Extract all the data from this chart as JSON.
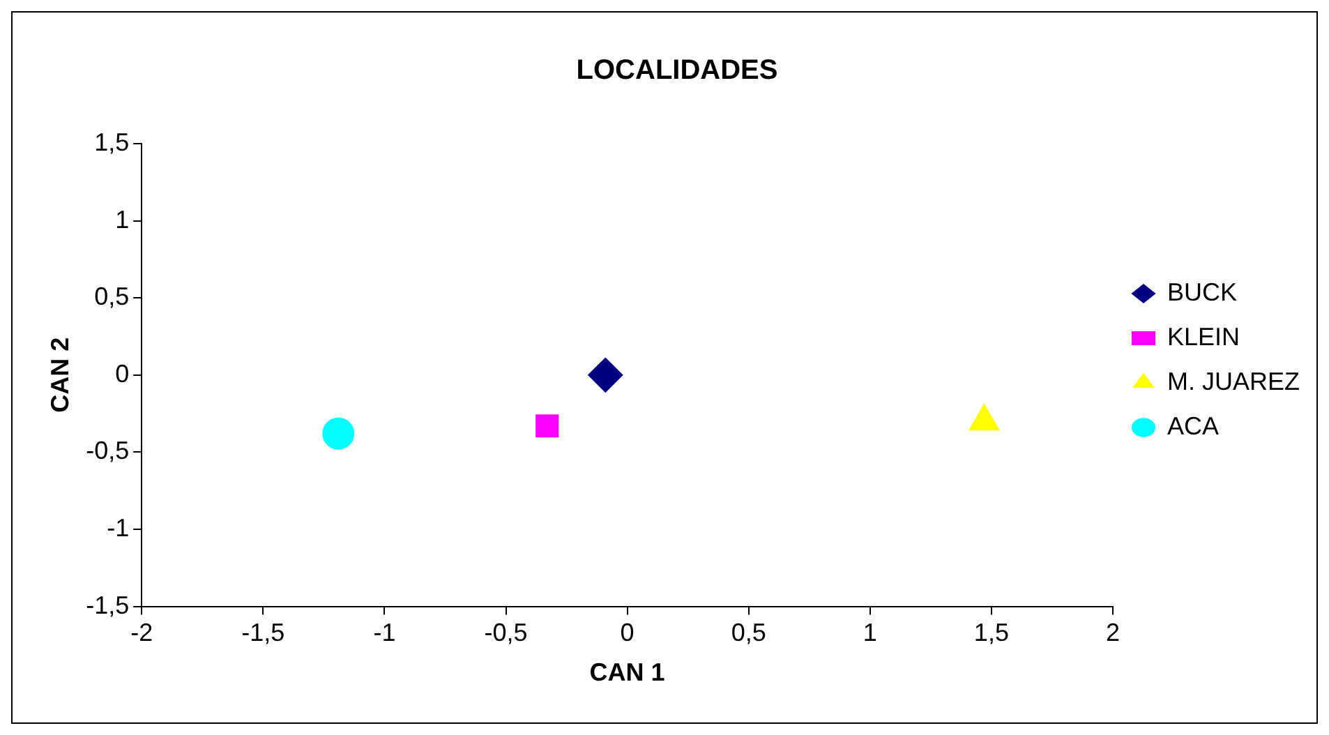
{
  "chart_data": {
    "type": "scatter",
    "title": "LOCALIDADES",
    "xlabel": "CAN 1",
    "ylabel": "CAN 2",
    "xlim": [
      -2,
      2
    ],
    "ylim": [
      -1.5,
      1.5
    ],
    "xticks": [
      -2,
      {
        "value": -1.5,
        "label": "-1,5"
      },
      -1,
      {
        "value": -0.5,
        "label": "-0,5"
      },
      0,
      {
        "value": 0.5,
        "label": "0,5"
      },
      1,
      {
        "value": 1.5,
        "label": "1,5"
      },
      2
    ],
    "yticks": [
      {
        "value": -1.5,
        "label": "-1,5"
      },
      -1,
      {
        "value": -0.5,
        "label": "-0,5"
      },
      0,
      {
        "value": 0.5,
        "label": "0,5"
      },
      1,
      {
        "value": 1.5,
        "label": "1,5"
      }
    ],
    "grid": false,
    "legend": "right",
    "series": [
      {
        "name": "BUCK",
        "color": "#000080",
        "marker": "diamond",
        "x": [
          -0.09
        ],
        "values": [
          0
        ]
      },
      {
        "name": "KLEIN",
        "color": "#ff00ff",
        "marker": "square",
        "x": [
          -0.33
        ],
        "values": [
          -0.33
        ]
      },
      {
        "name": "M. JUAREZ",
        "color": "#ffff00",
        "marker": "triangle",
        "x": [
          1.47
        ],
        "values": [
          -0.3
        ]
      },
      {
        "name": "ACA",
        "color": "#00ffff",
        "marker": "circle",
        "x": [
          -1.19
        ],
        "values": [
          -0.38
        ]
      }
    ]
  }
}
